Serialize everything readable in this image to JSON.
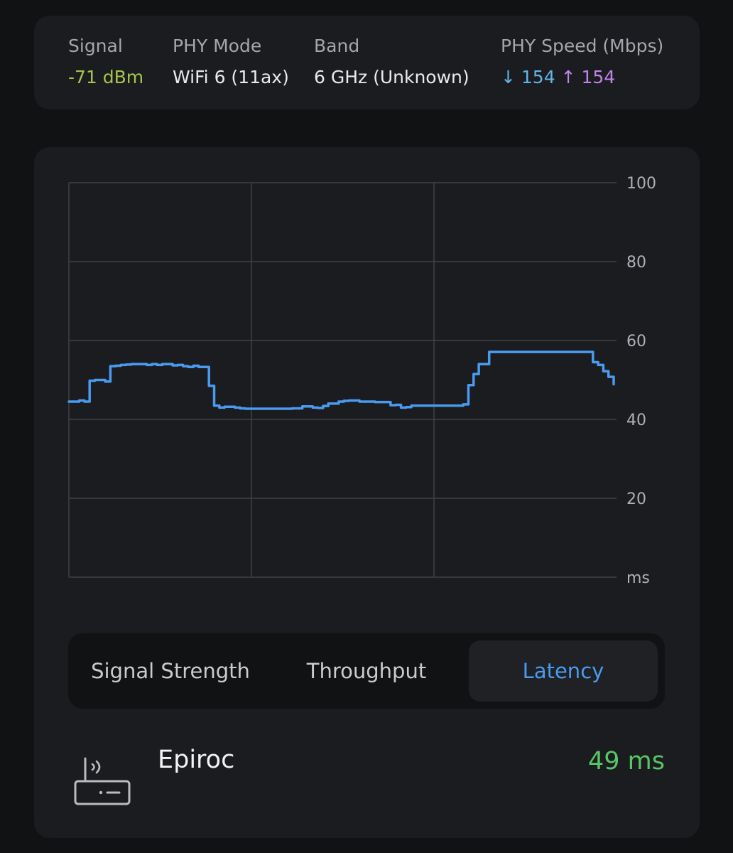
{
  "info": {
    "signal": {
      "label": "Signal",
      "value": "-71 dBm"
    },
    "phy_mode": {
      "label": "PHY Mode",
      "value": "WiFi 6 (11ax)"
    },
    "band": {
      "label": "Band",
      "value": "6 GHz (Unknown)"
    },
    "phy_speed": {
      "label": "PHY Speed (Mbps)",
      "down_arrow": "↓",
      "down": "154",
      "up_arrow": "↑",
      "up": "154"
    }
  },
  "tabs": [
    {
      "label": "Signal Strength",
      "active": false
    },
    {
      "label": "Throughput",
      "active": false
    },
    {
      "label": "Latency",
      "active": true
    }
  ],
  "network": {
    "name": "Epiroc",
    "latency": "49 ms",
    "icon": "router-icon"
  },
  "colors": {
    "line": "#4a9bf0",
    "signal": "#a7c44a",
    "download": "#5fb6e6",
    "upload": "#c084ec",
    "latency_value": "#58c566"
  },
  "chart_data": {
    "type": "line",
    "ylim": [
      0,
      100
    ],
    "y_ticks": [
      "100",
      "80",
      "60",
      "40",
      "20",
      "ms"
    ],
    "grid": true,
    "series": [
      {
        "values": [
          44.5,
          44.5,
          44.8,
          44.5,
          49.8,
          50,
          50,
          49.6,
          53.5,
          53.6,
          53.8,
          53.9,
          54,
          54,
          54,
          53.8,
          54,
          53.8,
          54,
          54,
          53.7,
          53.8,
          53.5,
          53.3,
          53.6,
          53.3,
          53.3,
          48.5,
          43.5,
          43,
          43.2,
          43.2,
          43,
          42.8,
          42.7,
          42.7,
          42.7,
          42.7,
          42.7,
          42.7,
          42.7,
          42.7,
          42.7,
          42.8,
          42.8,
          43.3,
          43.3,
          43,
          42.9,
          43.4,
          44,
          44,
          44.5,
          44.7,
          44.8,
          44.8,
          44.5,
          44.5,
          44.5,
          44.4,
          44.4,
          44.4,
          43.6,
          43.7,
          43,
          43.1,
          43.5,
          43.5,
          43.5,
          43.5,
          43.5,
          43.5,
          43.5,
          43.5,
          43.5,
          43.5,
          43.8,
          48.7,
          51.5,
          54,
          54,
          57.1,
          57.1,
          57.1,
          57.1,
          57.1,
          57.1,
          57.1,
          57.1,
          57.1,
          57.1,
          57.1,
          57.1,
          57.1,
          57.1,
          57.1,
          57.1,
          57.1,
          57.1,
          57.1,
          57.1,
          54.5,
          53.8,
          52.2,
          50.8,
          48.9
        ]
      }
    ]
  }
}
